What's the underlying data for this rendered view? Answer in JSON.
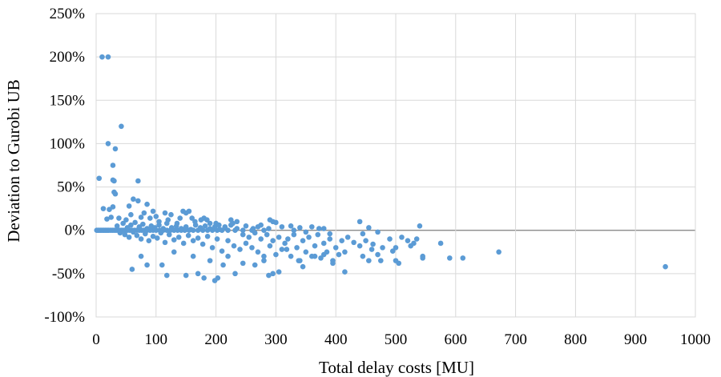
{
  "chart_data": {
    "type": "scatter",
    "title": "",
    "xlabel": "Total delay costs [MU]",
    "ylabel": "Deviation to Gurobi UB",
    "xlim": [
      0,
      1000
    ],
    "ylim": [
      -100,
      250
    ],
    "x_ticks": [
      0,
      100,
      200,
      300,
      400,
      500,
      600,
      700,
      800,
      900,
      1000
    ],
    "y_ticks": [
      -100,
      -50,
      0,
      50,
      100,
      150,
      200,
      250
    ],
    "y_tick_labels": [
      "-100%",
      "-50%",
      "0%",
      "50%",
      "100%",
      "150%",
      "200%",
      "250%"
    ],
    "x_tick_labels": [
      "0",
      "100",
      "200",
      "300",
      "400",
      "500",
      "600",
      "700",
      "800",
      "900",
      "1000"
    ],
    "grid": true,
    "legend": "none",
    "marker_color": "#5b9bd5",
    "gridline_color": "#d9d9d9",
    "points": [
      [
        10,
        200
      ],
      [
        20,
        200
      ],
      [
        42,
        120
      ],
      [
        20,
        100
      ],
      [
        32,
        94
      ],
      [
        28,
        75
      ],
      [
        5,
        60
      ],
      [
        28,
        58
      ],
      [
        30,
        57
      ],
      [
        70,
        57
      ],
      [
        30,
        44
      ],
      [
        32,
        42
      ],
      [
        12,
        25
      ],
      [
        22,
        24
      ],
      [
        28,
        27
      ],
      [
        55,
        28
      ],
      [
        62,
        36
      ],
      [
        70,
        34
      ],
      [
        85,
        30
      ],
      [
        18,
        13
      ],
      [
        25,
        15
      ],
      [
        38,
        14
      ],
      [
        50,
        12
      ],
      [
        58,
        18
      ],
      [
        75,
        15
      ],
      [
        90,
        14
      ],
      [
        100,
        16
      ],
      [
        115,
        20
      ],
      [
        125,
        18
      ],
      [
        145,
        22
      ],
      [
        150,
        20
      ],
      [
        155,
        22
      ],
      [
        160,
        14
      ],
      [
        180,
        14
      ],
      [
        185,
        12
      ],
      [
        200,
        8
      ],
      [
        225,
        12
      ],
      [
        235,
        10
      ],
      [
        270,
        4
      ],
      [
        290,
        12
      ],
      [
        295,
        10
      ],
      [
        300,
        9
      ],
      [
        325,
        5
      ],
      [
        340,
        3
      ],
      [
        360,
        4
      ],
      [
        380,
        2
      ],
      [
        440,
        10
      ],
      [
        455,
        3
      ],
      [
        470,
        -2
      ],
      [
        540,
        5
      ],
      [
        545,
        -30
      ],
      [
        1,
        0
      ],
      [
        3,
        0
      ],
      [
        5,
        0
      ],
      [
        7,
        0
      ],
      [
        9,
        0
      ],
      [
        11,
        0
      ],
      [
        13,
        0
      ],
      [
        15,
        0
      ],
      [
        17,
        0
      ],
      [
        19,
        0
      ],
      [
        21,
        0
      ],
      [
        24,
        0
      ],
      [
        27,
        0
      ],
      [
        30,
        0
      ],
      [
        33,
        0
      ],
      [
        36,
        0
      ],
      [
        39,
        0
      ],
      [
        42,
        0
      ],
      [
        45,
        0
      ],
      [
        48,
        0
      ],
      [
        52,
        0
      ],
      [
        56,
        0
      ],
      [
        60,
        0
      ],
      [
        64,
        0
      ],
      [
        68,
        0
      ],
      [
        72,
        0
      ],
      [
        76,
        0
      ],
      [
        80,
        0
      ],
      [
        85,
        0
      ],
      [
        90,
        0
      ],
      [
        95,
        0
      ],
      [
        100,
        0
      ],
      [
        106,
        0
      ],
      [
        112,
        0
      ],
      [
        118,
        0
      ],
      [
        124,
        0
      ],
      [
        130,
        0
      ],
      [
        136,
        0
      ],
      [
        142,
        0
      ],
      [
        148,
        0
      ],
      [
        155,
        0
      ],
      [
        162,
        0
      ],
      [
        170,
        0
      ],
      [
        178,
        0
      ],
      [
        186,
        0
      ],
      [
        194,
        0
      ],
      [
        202,
        0
      ],
      [
        210,
        0
      ],
      [
        220,
        0
      ],
      [
        232,
        0
      ],
      [
        245,
        0
      ],
      [
        260,
        0
      ],
      [
        280,
        0
      ],
      [
        35,
        5
      ],
      [
        40,
        -3
      ],
      [
        45,
        8
      ],
      [
        48,
        -5
      ],
      [
        52,
        3
      ],
      [
        55,
        -8
      ],
      [
        58,
        6
      ],
      [
        62,
        -2
      ],
      [
        65,
        9
      ],
      [
        68,
        -6
      ],
      [
        72,
        4
      ],
      [
        75,
        -10
      ],
      [
        78,
        7
      ],
      [
        82,
        -4
      ],
      [
        85,
        2
      ],
      [
        88,
        -12
      ],
      [
        92,
        5
      ],
      [
        95,
        -7
      ],
      [
        98,
        3
      ],
      [
        102,
        -9
      ],
      [
        105,
        6
      ],
      [
        108,
        -3
      ],
      [
        112,
        2
      ],
      [
        115,
        -14
      ],
      [
        118,
        8
      ],
      [
        122,
        -5
      ],
      [
        126,
        3
      ],
      [
        130,
        -11
      ],
      [
        134,
        5
      ],
      [
        138,
        -8
      ],
      [
        142,
        2
      ],
      [
        146,
        -15
      ],
      [
        150,
        4
      ],
      [
        154,
        -6
      ],
      [
        158,
        1
      ],
      [
        162,
        -12
      ],
      [
        166,
        6
      ],
      [
        170,
        -9
      ],
      [
        174,
        3
      ],
      [
        178,
        -16
      ],
      [
        182,
        5
      ],
      [
        186,
        -7
      ],
      [
        190,
        2
      ],
      [
        194,
        -20
      ],
      [
        198,
        4
      ],
      [
        202,
        -10
      ],
      [
        206,
        1
      ],
      [
        210,
        -24
      ],
      [
        215,
        3
      ],
      [
        220,
        -12
      ],
      [
        225,
        6
      ],
      [
        230,
        -18
      ],
      [
        235,
        2
      ],
      [
        240,
        -22
      ],
      [
        245,
        -5
      ],
      [
        250,
        -15
      ],
      [
        255,
        -8
      ],
      [
        260,
        -20
      ],
      [
        265,
        -3
      ],
      [
        270,
        -25
      ],
      [
        275,
        -10
      ],
      [
        280,
        -30
      ],
      [
        285,
        -5
      ],
      [
        290,
        -18
      ],
      [
        295,
        -12
      ],
      [
        300,
        -28
      ],
      [
        305,
        -8
      ],
      [
        310,
        -22
      ],
      [
        315,
        -15
      ],
      [
        320,
        -10
      ],
      [
        325,
        -30
      ],
      [
        330,
        -5
      ],
      [
        335,
        -20
      ],
      [
        340,
        -35
      ],
      [
        345,
        -12
      ],
      [
        350,
        -25
      ],
      [
        355,
        -8
      ],
      [
        360,
        -30
      ],
      [
        365,
        -18
      ],
      [
        370,
        -5
      ],
      [
        375,
        -32
      ],
      [
        380,
        -15
      ],
      [
        385,
        -25
      ],
      [
        390,
        -10
      ],
      [
        395,
        -35
      ],
      [
        400,
        -20
      ],
      [
        405,
        -28
      ],
      [
        410,
        -12
      ],
      [
        415,
        -25
      ],
      [
        440,
        -18
      ],
      [
        445,
        -30
      ],
      [
        450,
        -12
      ],
      [
        455,
        -35
      ],
      [
        460,
        -22
      ],
      [
        470,
        -28
      ],
      [
        475,
        -35
      ],
      [
        490,
        -10
      ],
      [
        500,
        -20
      ],
      [
        500,
        -35
      ],
      [
        505,
        -38
      ],
      [
        520,
        -12
      ],
      [
        530,
        -15
      ],
      [
        535,
        -10
      ],
      [
        545,
        -32
      ],
      [
        575,
        -15
      ],
      [
        590,
        -32
      ],
      [
        612,
        -32
      ],
      [
        672,
        -25
      ],
      [
        950,
        -42
      ],
      [
        60,
        -45
      ],
      [
        75,
        -30
      ],
      [
        85,
        -40
      ],
      [
        110,
        -40
      ],
      [
        118,
        -52
      ],
      [
        130,
        -25
      ],
      [
        150,
        -52
      ],
      [
        162,
        -30
      ],
      [
        170,
        -50
      ],
      [
        180,
        -55
      ],
      [
        190,
        -35
      ],
      [
        198,
        -58
      ],
      [
        203,
        -55
      ],
      [
        212,
        -40
      ],
      [
        220,
        -30
      ],
      [
        232,
        -50
      ],
      [
        245,
        -38
      ],
      [
        265,
        -40
      ],
      [
        280,
        -35
      ],
      [
        288,
        -52
      ],
      [
        295,
        -50
      ],
      [
        305,
        -48
      ],
      [
        318,
        -22
      ],
      [
        338,
        -35
      ],
      [
        345,
        -42
      ],
      [
        365,
        -30
      ],
      [
        380,
        -28
      ],
      [
        395,
        -38
      ],
      [
        415,
        -48
      ],
      [
        80,
        20
      ],
      [
        95,
        22
      ],
      [
        105,
        10
      ],
      [
        120,
        12
      ],
      [
        135,
        8
      ],
      [
        140,
        14
      ],
      [
        165,
        10
      ],
      [
        175,
        12
      ],
      [
        190,
        8
      ],
      [
        205,
        6
      ],
      [
        215,
        4
      ],
      [
        228,
        8
      ],
      [
        250,
        5
      ],
      [
        262,
        2
      ],
      [
        275,
        6
      ],
      [
        288,
        2
      ],
      [
        310,
        4
      ],
      [
        330,
        0
      ],
      [
        350,
        -2
      ],
      [
        372,
        2
      ],
      [
        390,
        -4
      ],
      [
        420,
        -8
      ],
      [
        430,
        -14
      ],
      [
        445,
        -4
      ],
      [
        462,
        -16
      ],
      [
        478,
        -20
      ],
      [
        495,
        -24
      ],
      [
        510,
        -8
      ],
      [
        525,
        -18
      ]
    ]
  }
}
